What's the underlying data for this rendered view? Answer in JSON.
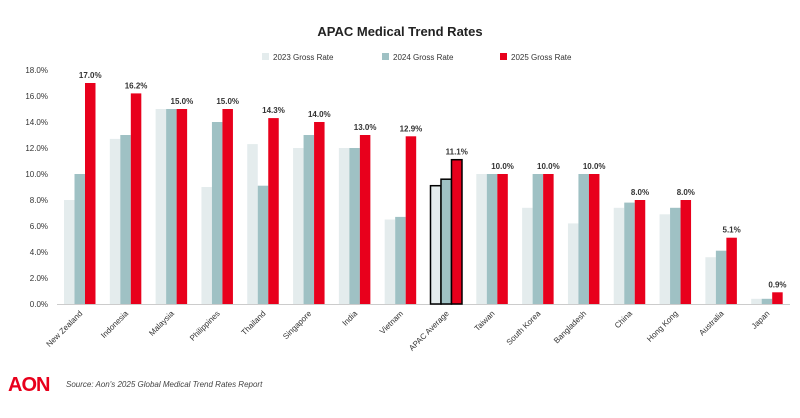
{
  "chart_data": {
    "type": "bar",
    "title": "APAC Medical Trend Rates",
    "categories": [
      "New Zealand",
      "Indonesia",
      "Malaysia",
      "Philippines",
      "Thailand",
      "Singapore",
      "India",
      "Vietnam",
      "APAC Average",
      "Taiwan",
      "South Korea",
      "Bangladesh",
      "China",
      "Hong Kong",
      "Australia",
      "Japan"
    ],
    "series": [
      {
        "name": "2023 Gross Rate",
        "color": "#e4eced",
        "values": [
          8.0,
          12.7,
          15.0,
          9.0,
          12.3,
          12.0,
          12.0,
          6.5,
          9.1,
          10.0,
          7.4,
          6.2,
          7.4,
          6.9,
          3.6,
          0.4
        ]
      },
      {
        "name": "2024 Gross Rate",
        "color": "#9fc1c4",
        "values": [
          10.0,
          13.0,
          15.0,
          14.0,
          9.1,
          13.0,
          12.0,
          6.7,
          9.6,
          10.0,
          10.0,
          10.0,
          7.8,
          7.4,
          4.1,
          0.4
        ]
      },
      {
        "name": "2025 Gross Rate",
        "color": "#e8001c",
        "values": [
          17.0,
          16.2,
          15.0,
          15.0,
          14.3,
          14.0,
          13.0,
          12.9,
          11.1,
          10.0,
          10.0,
          10.0,
          8.0,
          8.0,
          5.1,
          0.9
        ]
      }
    ],
    "data_labels": [
      "17.0%",
      "16.2%",
      "15.0%",
      "15.0%",
      "14.3%",
      "14.0%",
      "13.0%",
      "12.9%",
      "11.1%",
      "10.0%",
      "10.0%",
      "10.0%",
      "8.0%",
      "8.0%",
      "5.1%",
      "0.9%"
    ],
    "yticks": [
      "0.0%",
      "2.0%",
      "4.0%",
      "6.0%",
      "8.0%",
      "10.0%",
      "12.0%",
      "14.0%",
      "16.0%",
      "18.0%"
    ],
    "ylim": [
      0,
      18
    ],
    "highlighted_category": "APAC Average",
    "legend_position": "top",
    "xlabel": "",
    "ylabel": ""
  },
  "footer": {
    "logo": "AON",
    "source": "Source: Aon's 2025 Global Medical Trend Rates Report"
  }
}
